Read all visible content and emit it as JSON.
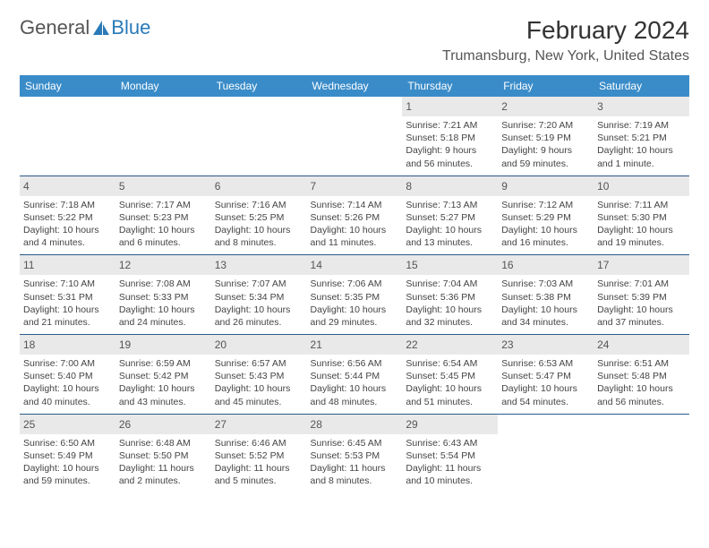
{
  "logo": {
    "text1": "General",
    "text2": "Blue"
  },
  "title": "February 2024",
  "location": "Trumansburg, New York, United States",
  "colors": {
    "header_bg": "#3a8cc9",
    "header_text": "#ffffff",
    "rule": "#2a5a8a",
    "daybar_bg": "#e9e9e9",
    "body_text": "#444444",
    "logo_blue": "#2a7ab8",
    "logo_gray": "#555555"
  },
  "dayNames": [
    "Sunday",
    "Monday",
    "Tuesday",
    "Wednesday",
    "Thursday",
    "Friday",
    "Saturday"
  ],
  "startsOn": 4,
  "days": [
    {
      "n": 1,
      "sr": "7:21 AM",
      "ss": "5:18 PM",
      "dl": "9 hours and 56 minutes."
    },
    {
      "n": 2,
      "sr": "7:20 AM",
      "ss": "5:19 PM",
      "dl": "9 hours and 59 minutes."
    },
    {
      "n": 3,
      "sr": "7:19 AM",
      "ss": "5:21 PM",
      "dl": "10 hours and 1 minute."
    },
    {
      "n": 4,
      "sr": "7:18 AM",
      "ss": "5:22 PM",
      "dl": "10 hours and 4 minutes."
    },
    {
      "n": 5,
      "sr": "7:17 AM",
      "ss": "5:23 PM",
      "dl": "10 hours and 6 minutes."
    },
    {
      "n": 6,
      "sr": "7:16 AM",
      "ss": "5:25 PM",
      "dl": "10 hours and 8 minutes."
    },
    {
      "n": 7,
      "sr": "7:14 AM",
      "ss": "5:26 PM",
      "dl": "10 hours and 11 minutes."
    },
    {
      "n": 8,
      "sr": "7:13 AM",
      "ss": "5:27 PM",
      "dl": "10 hours and 13 minutes."
    },
    {
      "n": 9,
      "sr": "7:12 AM",
      "ss": "5:29 PM",
      "dl": "10 hours and 16 minutes."
    },
    {
      "n": 10,
      "sr": "7:11 AM",
      "ss": "5:30 PM",
      "dl": "10 hours and 19 minutes."
    },
    {
      "n": 11,
      "sr": "7:10 AM",
      "ss": "5:31 PM",
      "dl": "10 hours and 21 minutes."
    },
    {
      "n": 12,
      "sr": "7:08 AM",
      "ss": "5:33 PM",
      "dl": "10 hours and 24 minutes."
    },
    {
      "n": 13,
      "sr": "7:07 AM",
      "ss": "5:34 PM",
      "dl": "10 hours and 26 minutes."
    },
    {
      "n": 14,
      "sr": "7:06 AM",
      "ss": "5:35 PM",
      "dl": "10 hours and 29 minutes."
    },
    {
      "n": 15,
      "sr": "7:04 AM",
      "ss": "5:36 PM",
      "dl": "10 hours and 32 minutes."
    },
    {
      "n": 16,
      "sr": "7:03 AM",
      "ss": "5:38 PM",
      "dl": "10 hours and 34 minutes."
    },
    {
      "n": 17,
      "sr": "7:01 AM",
      "ss": "5:39 PM",
      "dl": "10 hours and 37 minutes."
    },
    {
      "n": 18,
      "sr": "7:00 AM",
      "ss": "5:40 PM",
      "dl": "10 hours and 40 minutes."
    },
    {
      "n": 19,
      "sr": "6:59 AM",
      "ss": "5:42 PM",
      "dl": "10 hours and 43 minutes."
    },
    {
      "n": 20,
      "sr": "6:57 AM",
      "ss": "5:43 PM",
      "dl": "10 hours and 45 minutes."
    },
    {
      "n": 21,
      "sr": "6:56 AM",
      "ss": "5:44 PM",
      "dl": "10 hours and 48 minutes."
    },
    {
      "n": 22,
      "sr": "6:54 AM",
      "ss": "5:45 PM",
      "dl": "10 hours and 51 minutes."
    },
    {
      "n": 23,
      "sr": "6:53 AM",
      "ss": "5:47 PM",
      "dl": "10 hours and 54 minutes."
    },
    {
      "n": 24,
      "sr": "6:51 AM",
      "ss": "5:48 PM",
      "dl": "10 hours and 56 minutes."
    },
    {
      "n": 25,
      "sr": "6:50 AM",
      "ss": "5:49 PM",
      "dl": "10 hours and 59 minutes."
    },
    {
      "n": 26,
      "sr": "6:48 AM",
      "ss": "5:50 PM",
      "dl": "11 hours and 2 minutes."
    },
    {
      "n": 27,
      "sr": "6:46 AM",
      "ss": "5:52 PM",
      "dl": "11 hours and 5 minutes."
    },
    {
      "n": 28,
      "sr": "6:45 AM",
      "ss": "5:53 PM",
      "dl": "11 hours and 8 minutes."
    },
    {
      "n": 29,
      "sr": "6:43 AM",
      "ss": "5:54 PM",
      "dl": "11 hours and 10 minutes."
    }
  ],
  "labels": {
    "sunrise": "Sunrise:",
    "sunset": "Sunset:",
    "daylight": "Daylight:"
  }
}
